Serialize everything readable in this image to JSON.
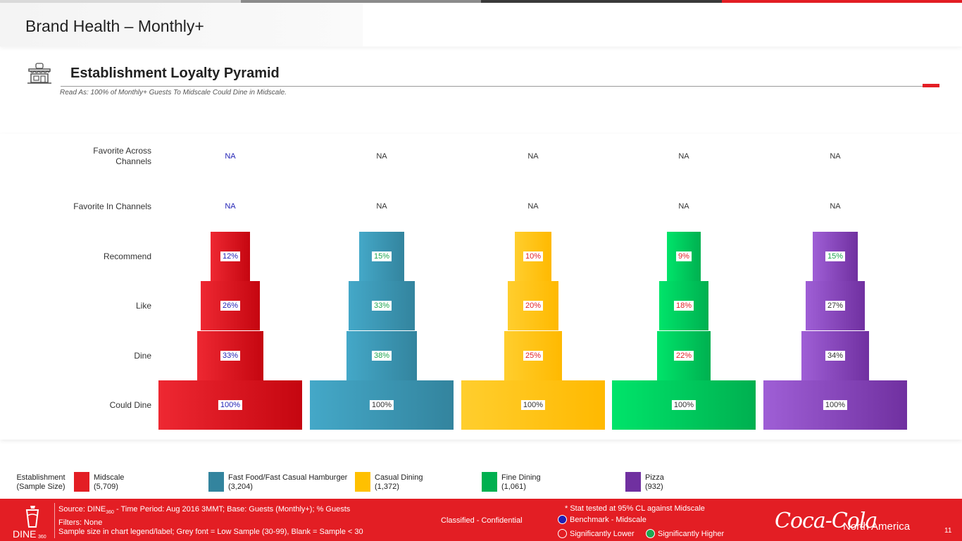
{
  "header": {
    "title": "Brand Health – Monthly+"
  },
  "section": {
    "icon": "storefront-icon",
    "title": "Establishment Loyalty Pyramid",
    "read_as": "Read As: 100% of Monthly+ Guests To Midscale Could Dine in Midscale."
  },
  "colors": {
    "topbar": [
      "#dadada",
      "#8c8c8c",
      "#3a3a3a",
      "#e31e24"
    ],
    "significantly_lower": "#e31e24",
    "significantly_higher": "#1ea650",
    "benchmark": "#1f1fb4",
    "neutral": "#333333"
  },
  "chart_data": {
    "type": "bar",
    "chart_subtype": "loyalty-pyramid",
    "levels": [
      "Favorite Across Channels",
      "Favorite In Channels",
      "Recommend",
      "Like",
      "Dine",
      "Could Dine"
    ],
    "level_labels": [
      [
        "Favorite Across",
        "Channels"
      ],
      [
        "Favorite In Channels"
      ],
      [
        "Recommend"
      ],
      [
        "Like"
      ],
      [
        "Dine"
      ],
      [
        "Could Dine"
      ]
    ],
    "series": [
      {
        "name": "Midscale",
        "values": [
          null,
          null,
          12,
          26,
          33,
          100
        ],
        "labels": [
          "NA",
          "NA",
          "12%",
          "26%",
          "33%",
          "100%"
        ],
        "status": [
          "benchmark",
          "benchmark",
          "benchmark",
          "benchmark",
          "benchmark",
          "benchmark"
        ],
        "color_light": "#ee2832",
        "color_dark": "#c50610"
      },
      {
        "name": "Fast Food/Fast Casual Hamburger",
        "values": [
          null,
          null,
          15,
          33,
          38,
          100
        ],
        "labels": [
          "NA",
          "NA",
          "15%",
          "33%",
          "38%",
          "100%"
        ],
        "status": [
          "neutral",
          "neutral",
          "higher",
          "higher",
          "higher",
          "neutral"
        ],
        "color_light": "#44a8c8",
        "color_dark": "#33849e"
      },
      {
        "name": "Casual Dining",
        "values": [
          null,
          null,
          10,
          20,
          25,
          100
        ],
        "labels": [
          "NA",
          "NA",
          "10%",
          "20%",
          "25%",
          "100%"
        ],
        "status": [
          "neutral",
          "neutral",
          "lower",
          "lower",
          "lower",
          "neutral"
        ],
        "color_light": "#ffce2e",
        "color_dark": "#ffb900"
      },
      {
        "name": "Fine Dining",
        "values": [
          null,
          null,
          9,
          18,
          22,
          100
        ],
        "labels": [
          "NA",
          "NA",
          "9%",
          "18%",
          "22%",
          "100%"
        ],
        "status": [
          "neutral",
          "neutral",
          "lower",
          "lower",
          "lower",
          "neutral"
        ],
        "color_light": "#00e46a",
        "color_dark": "#00b050"
      },
      {
        "name": "Pizza",
        "values": [
          null,
          null,
          15,
          27,
          34,
          100
        ],
        "labels": [
          "NA",
          "NA",
          "15%",
          "27%",
          "34%",
          "100%"
        ],
        "status": [
          "neutral",
          "neutral",
          "higher",
          "neutral",
          "neutral",
          "neutral"
        ],
        "color_light": "#9f5fd6",
        "color_dark": "#7030a0"
      }
    ],
    "ylim": [
      0,
      100
    ],
    "grid": false
  },
  "legend": {
    "title": [
      "Establishment",
      "(Sample Size)"
    ],
    "items": [
      {
        "name": "Midscale",
        "sample": "(5,709)",
        "color": "#e31e24"
      },
      {
        "name": "Fast Food/Fast Casual Hamburger",
        "sample": "(3,204)",
        "color": "#33849e"
      },
      {
        "name": "Casual Dining",
        "sample": "(1,372)",
        "color": "#ffc000"
      },
      {
        "name": "Fine Dining",
        "sample": "(1,061)",
        "color": "#00b050"
      },
      {
        "name": "Pizza",
        "sample": "(932)",
        "color": "#7030a0"
      }
    ]
  },
  "footer": {
    "logo_text": "DINE",
    "logo_sub": "360",
    "source_prefix": "Source: DINE",
    "source_sub": "360",
    "source_suffix": " - Time Period: Aug 2016 3MMT; Base: Guests (Monthly+); % Guests",
    "filters": "Filters: None",
    "sample_note": "Sample size in chart legend/label;  Grey font = Low Sample (30-99), Blank = Sample < 30",
    "classified": "Classified - Confidential",
    "stat_note": "* Stat tested at 95% CL against Midscale",
    "benchmark": "Benchmark - Midscale",
    "lower": "Significantly Lower",
    "higher": "Significantly Higher",
    "brand": "Coca-Cola",
    "region": "North America",
    "page": "11"
  }
}
